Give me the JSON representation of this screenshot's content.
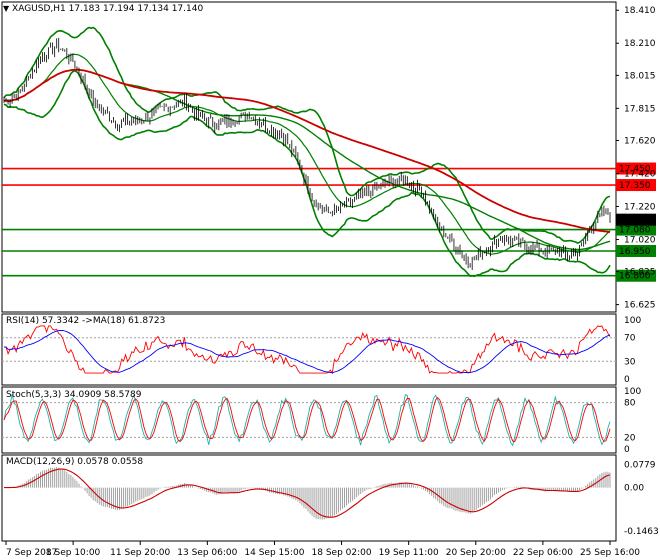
{
  "title_bar": {
    "symbol_label": "XAGUSD,H1",
    "ohlc": "17.183 17.194 17.134 17.140"
  },
  "colors": {
    "bollinger": "#007f00",
    "ma_short": "#ff0000",
    "ma_long": "#cc0000",
    "ma_mid": "#008000",
    "price": "#000000",
    "rsi": "#ff0000",
    "rsi_ma": "#0000ff",
    "stoch_main": "#20b2aa",
    "stoch_signal": "#ff0000",
    "macd_hist": "#a0a0a0",
    "macd_signal": "#cc0000",
    "hline_red": "#ff0000",
    "hline_green": "#008000",
    "hline_gray": "#a0a0a0"
  },
  "x_labels": [
    "7 Sep 2017",
    "8 Sep 10:00",
    "11 Sep 20:00",
    "13 Sep 06:00",
    "14 Sep 15:00",
    "18 Sep 02:00",
    "19 Sep 11:00",
    "20 Sep 20:00",
    "22 Sep 06:00",
    "25 Sep 16:00"
  ],
  "main_axis": {
    "ticks": [
      "18.410",
      "18.210",
      "18.015",
      "17.815",
      "17.620",
      "17.420",
      "17.220",
      "17.020",
      "16.825",
      "16.625"
    ],
    "ylim": [
      16.58,
      18.46
    ]
  },
  "levels": [
    {
      "value": 17.45,
      "label": "17.450",
      "color": "#ff0000"
    },
    {
      "value": 17.35,
      "label": "17.350",
      "color": "#ff0000"
    },
    {
      "value": 17.08,
      "label": "17.080",
      "color": "#008000"
    },
    {
      "value": 16.95,
      "label": "16.950",
      "color": "#008000"
    },
    {
      "value": 16.8,
      "label": "16.800",
      "color": "#008000"
    }
  ],
  "current_price": {
    "value": 17.14,
    "label": "17.140"
  },
  "rsi": {
    "label": "RSI(14) 57.3342 ->MA(18) 61.8723",
    "ticks": [
      "100",
      "70",
      "30",
      "0"
    ],
    "levels": [
      70,
      30
    ]
  },
  "stoch": {
    "label": "Stoch(5,3,3) 34.0909 58.5789",
    "ticks": [
      "100",
      "80",
      "20",
      "0"
    ],
    "levels": [
      80,
      20
    ]
  },
  "macd": {
    "label": "MACD(12,26,9) 0.0578 0.0558",
    "ticks": [
      "0.0779",
      "0.00",
      "-0.1463"
    ],
    "ylim": [
      -0.16,
      0.09
    ]
  },
  "chart_data": [
    {
      "type": "line",
      "title": "XAGUSD,H1",
      "x": [
        "7 Sep 2017",
        "8 Sep 10:00",
        "11 Sep 20:00",
        "13 Sep 06:00",
        "14 Sep 15:00",
        "18 Sep 02:00",
        "19 Sep 11:00",
        "20 Sep 20:00",
        "22 Sep 06:00",
        "25 Sep 16:00"
      ],
      "series": [
        {
          "values": [
            17.87,
            18.18,
            17.72,
            17.88,
            17.76,
            17.62,
            17.25,
            16.88,
            16.97,
            17.14
          ]
        }
      ],
      "ylim": [
        16.625,
        18.41
      ]
    },
    {
      "type": "line",
      "title": "RSI(14) 57.3342 ->MA(18) 61.8723",
      "x": [
        "7 Sep 2017",
        "8 Sep 10:00",
        "11 Sep 20:00",
        "13 Sep 06:00",
        "14 Sep 15:00",
        "18 Sep 02:00",
        "19 Sep 11:00",
        "20 Sep 20:00",
        "22 Sep 06:00",
        "25 Sep 16:00"
      ],
      "series": [
        {
          "values": [
            58,
            68,
            48,
            55,
            50,
            25,
            48,
            38,
            48,
            57
          ]
        }
      ],
      "ylim": [
        0,
        100
      ]
    },
    {
      "type": "line",
      "title": "Stoch(5,3,3) 34.0909 58.5789",
      "x": [
        "7 Sep 2017",
        "8 Sep 10:00",
        "11 Sep 20:00",
        "13 Sep 06:00",
        "14 Sep 15:00",
        "18 Sep 02:00",
        "19 Sep 11:00",
        "20 Sep 20:00",
        "22 Sep 06:00",
        "25 Sep 16:00"
      ],
      "series": [
        {
          "values": [
            45,
            90,
            20,
            70,
            40,
            15,
            85,
            20,
            75,
            34
          ]
        }
      ],
      "ylim": [
        0,
        100
      ]
    },
    {
      "type": "bar",
      "title": "MACD(12,26,9) 0.0578 0.0558",
      "categories": [
        "7 Sep 2017",
        "8 Sep 10:00",
        "11 Sep 20:00",
        "13 Sep 06:00",
        "14 Sep 15:00",
        "18 Sep 02:00",
        "19 Sep 11:00",
        "20 Sep 20:00",
        "22 Sep 06:00",
        "25 Sep 16:00"
      ],
      "values": [
        0.0,
        0.06,
        -0.02,
        0.02,
        0.0,
        -0.14,
        -0.03,
        -0.09,
        -0.04,
        0.0578
      ],
      "ylim": [
        -0.1463,
        0.0779
      ]
    }
  ]
}
